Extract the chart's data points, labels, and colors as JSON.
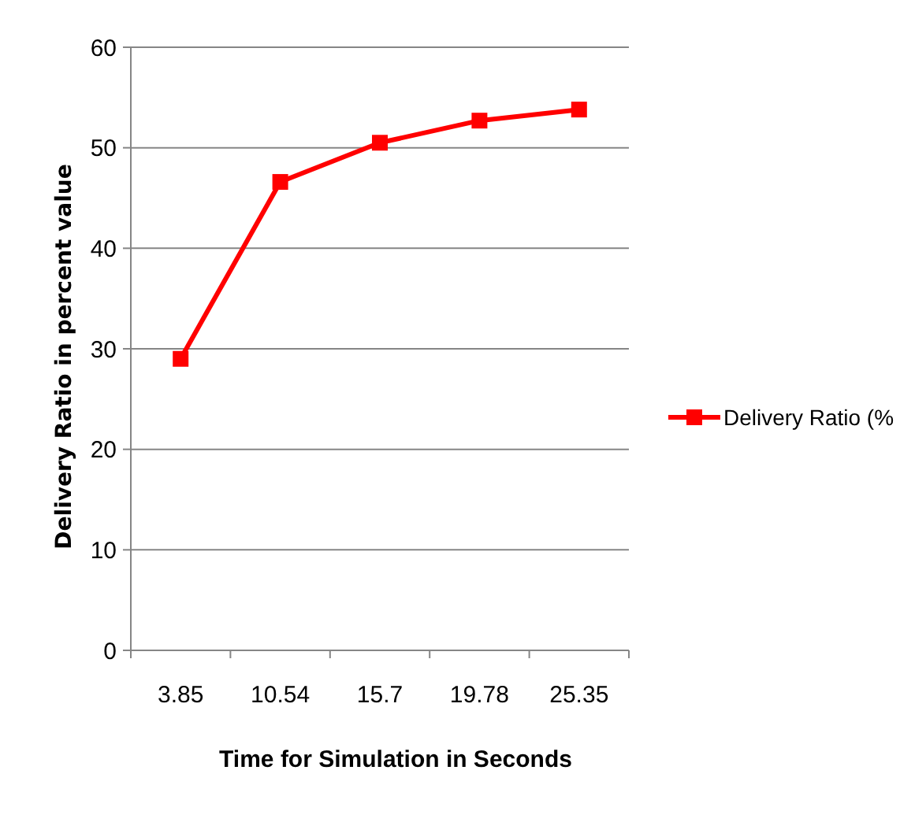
{
  "chart_data": {
    "type": "line",
    "xlabel": "Time for Simulation in Seconds",
    "ylabel": "Delivery Ratio in  percent value",
    "categories": [
      "3.85",
      "10.54",
      "15.7",
      "19.78",
      "25.35"
    ],
    "series": [
      {
        "name": "Delivery Ratio (%",
        "color": "#ff0000",
        "values": [
          29,
          46.6,
          50.5,
          52.7,
          53.8
        ]
      }
    ],
    "ylim": [
      0,
      60
    ],
    "yticks": [
      0,
      10,
      20,
      30,
      40,
      50,
      60
    ],
    "grid": "y",
    "legend": "right",
    "marker": "square",
    "line_style": "solid"
  }
}
